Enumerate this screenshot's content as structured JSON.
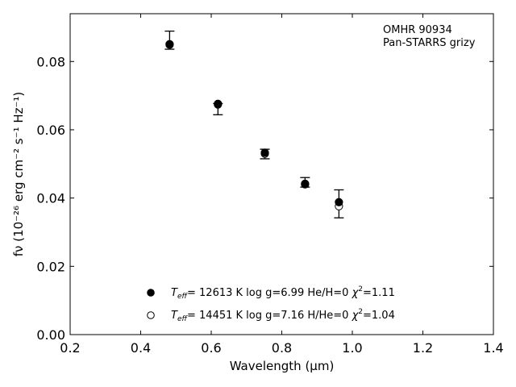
{
  "chart_data": {
    "type": "scatter",
    "xlabel": "Wavelength (μm)",
    "ylabel": "fν (10⁻²⁶ erg cm⁻² s⁻¹ Hz⁻¹)",
    "xlim": [
      0.2,
      1.4
    ],
    "ylim": [
      0.0,
      0.094
    ],
    "xticks": [
      "0.2",
      "0.4",
      "0.6",
      "0.8",
      "1.0",
      "1.2",
      "1.4"
    ],
    "yticks": [
      "0.00",
      "0.02",
      "0.04",
      "0.06",
      "0.08"
    ],
    "annotation": [
      "OMHR 90934",
      "Pan-STARRS grizy"
    ],
    "grid": false,
    "legend_position": "lower-center",
    "observed": {
      "x": [
        0.482,
        0.619,
        0.752,
        0.866,
        0.962
      ],
      "y": [
        0.0857,
        0.0666,
        0.0527,
        0.044,
        0.0382
      ],
      "yerr_low": [
        0.0021,
        0.0022,
        0.0012,
        0.0008,
        0.004
      ],
      "yerr_high": [
        0.0032,
        0.0011,
        0.0016,
        0.002,
        0.0042
      ]
    },
    "series": [
      {
        "label": "T_eff= 12613 K  log g=6.99  He/H=0  χ²=1.11",
        "marker": "filled-circle",
        "x": [
          0.482,
          0.619,
          0.752,
          0.866,
          0.962
        ],
        "y": [
          0.0851,
          0.0676,
          0.0533,
          0.0442,
          0.0388
        ]
      },
      {
        "label": "T_eff= 14451 K  log g=7.16  H/He=0  χ²=1.04",
        "marker": "open-circle",
        "x": [
          0.482,
          0.619,
          0.752,
          0.866,
          0.962
        ],
        "y": [
          0.0849,
          0.0674,
          0.053,
          0.044,
          0.0376
        ]
      }
    ],
    "legend": [
      {
        "teff_label": "T",
        "teff_sub": "eff",
        "text1": "= 12613 K  log g=6.99  He/H=0  ",
        "chi": "χ",
        "sup": "2",
        "text2": "=1.11"
      },
      {
        "teff_label": "T",
        "teff_sub": "eff",
        "text1": "= 14451 K  log g=7.16  H/He=0  ",
        "chi": "χ",
        "sup": "2",
        "text2": "=1.04"
      }
    ]
  }
}
